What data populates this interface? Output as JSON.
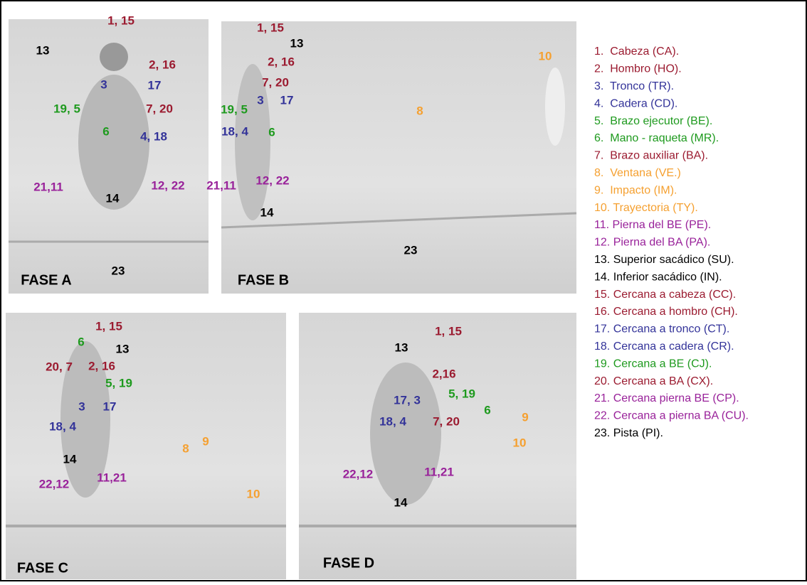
{
  "panels": [
    {
      "title": "FASE A",
      "labels": [
        {
          "text": "1, 15",
          "color": "#9b1b30"
        },
        {
          "text": "13",
          "color": "#000000"
        },
        {
          "text": "2, 16",
          "color": "#9b1b30"
        },
        {
          "text": "3",
          "color": "#333399"
        },
        {
          "text": "17",
          "color": "#333399"
        },
        {
          "text": "19, 5",
          "color": "#1e9a1e"
        },
        {
          "text": "7, 20",
          "color": "#9b1b30"
        },
        {
          "text": "6",
          "color": "#1e9a1e"
        },
        {
          "text": "4, 18",
          "color": "#333399"
        },
        {
          "text": "21,11",
          "color": "#99229a"
        },
        {
          "text": "12, 22",
          "color": "#99229a"
        },
        {
          "text": "14",
          "color": "#000000"
        },
        {
          "text": "23",
          "color": "#000000"
        }
      ]
    },
    {
      "title": "FASE B",
      "labels": [
        {
          "text": "1, 15",
          "color": "#9b1b30"
        },
        {
          "text": "13",
          "color": "#000000"
        },
        {
          "text": "2, 16",
          "color": "#9b1b30"
        },
        {
          "text": "7, 20",
          "color": "#9b1b30"
        },
        {
          "text": "3",
          "color": "#333399"
        },
        {
          "text": "17",
          "color": "#333399"
        },
        {
          "text": "19, 5",
          "color": "#1e9a1e"
        },
        {
          "text": "18, 4",
          "color": "#333399"
        },
        {
          "text": "6",
          "color": "#1e9a1e"
        },
        {
          "text": "21,11",
          "color": "#99229a"
        },
        {
          "text": "12, 22",
          "color": "#99229a"
        },
        {
          "text": "14",
          "color": "#000000"
        },
        {
          "text": "23",
          "color": "#000000"
        },
        {
          "text": "8",
          "color": "#f5a030"
        },
        {
          "text": "10",
          "color": "#f5a030"
        }
      ]
    },
    {
      "title": "FASE C",
      "labels": [
        {
          "text": "1, 15",
          "color": "#9b1b30"
        },
        {
          "text": "6",
          "color": "#1e9a1e"
        },
        {
          "text": "13",
          "color": "#000000"
        },
        {
          "text": "20, 7",
          "color": "#9b1b30"
        },
        {
          "text": "2, 16",
          "color": "#9b1b30"
        },
        {
          "text": "5, 19",
          "color": "#1e9a1e"
        },
        {
          "text": "3",
          "color": "#333399"
        },
        {
          "text": "17",
          "color": "#333399"
        },
        {
          "text": "18, 4",
          "color": "#333399"
        },
        {
          "text": "8",
          "color": "#f5a030"
        },
        {
          "text": "9",
          "color": "#f5a030"
        },
        {
          "text": "14",
          "color": "#000000"
        },
        {
          "text": "22,12",
          "color": "#99229a"
        },
        {
          "text": "11,21",
          "color": "#99229a"
        },
        {
          "text": "10",
          "color": "#f5a030"
        }
      ]
    },
    {
      "title": "FASE D",
      "labels": [
        {
          "text": "1, 15",
          "color": "#9b1b30"
        },
        {
          "text": "13",
          "color": "#000000"
        },
        {
          "text": "2,16",
          "color": "#9b1b30"
        },
        {
          "text": "5, 19",
          "color": "#1e9a1e"
        },
        {
          "text": "17, 3",
          "color": "#333399"
        },
        {
          "text": "6",
          "color": "#1e9a1e"
        },
        {
          "text": "9",
          "color": "#f5a030"
        },
        {
          "text": "18, 4",
          "color": "#333399"
        },
        {
          "text": "7, 20",
          "color": "#9b1b30"
        },
        {
          "text": "10",
          "color": "#f5a030"
        },
        {
          "text": "22,12",
          "color": "#99229a"
        },
        {
          "text": "11,21",
          "color": "#99229a"
        },
        {
          "text": "14",
          "color": "#000000"
        }
      ]
    }
  ],
  "legend": [
    {
      "text": "1.  Cabeza (CA).",
      "color": "#9b1b30"
    },
    {
      "text": "2.  Hombro (HO).",
      "color": "#9b1b30"
    },
    {
      "text": "3.  Tronco (TR).",
      "color": "#333399"
    },
    {
      "text": "4.  Cadera (CD).",
      "color": "#333399"
    },
    {
      "text": "5.  Brazo ejecutor (BE).",
      "color": "#1e9a1e"
    },
    {
      "text": "6.  Mano - raqueta (MR).",
      "color": "#1e9a1e"
    },
    {
      "text": "7.  Brazo auxiliar (BA).",
      "color": "#9b1b30"
    },
    {
      "text": "8.  Ventana (VE.)",
      "color": "#f5a030"
    },
    {
      "text": "9.  Impacto (IM).",
      "color": "#f5a030"
    },
    {
      "text": "10. Trayectoria (TY).",
      "color": "#f5a030"
    },
    {
      "text": "11. Pierna del BE (PE).",
      "color": "#99229a"
    },
    {
      "text": "12. Pierna del BA (PA).",
      "color": "#99229a"
    },
    {
      "text": "13. Superior sacádico (SU).",
      "color": "#000000"
    },
    {
      "text": "14. Inferior sacádico (IN).",
      "color": "#000000"
    },
    {
      "text": "15. Cercana a cabeza (CC).",
      "color": "#9b1b30"
    },
    {
      "text": "16. Cercana a hombro (CH).",
      "color": "#9b1b30"
    },
    {
      "text": "17. Cercana a tronco (CT).",
      "color": "#333399"
    },
    {
      "text": "18. Cercana a cadera (CR).",
      "color": "#333399"
    },
    {
      "text": "19. Cercana a BE (CJ).",
      "color": "#1e9a1e"
    },
    {
      "text": "20. Cercana a BA (CX).",
      "color": "#9b1b30"
    },
    {
      "text": "21. Cercana pierna BE (CP).",
      "color": "#99229a"
    },
    {
      "text": "22. Cercana a pierna BA (CU).",
      "color": "#99229a"
    },
    {
      "text": "23. Pista (PI).",
      "color": "#000000"
    }
  ]
}
